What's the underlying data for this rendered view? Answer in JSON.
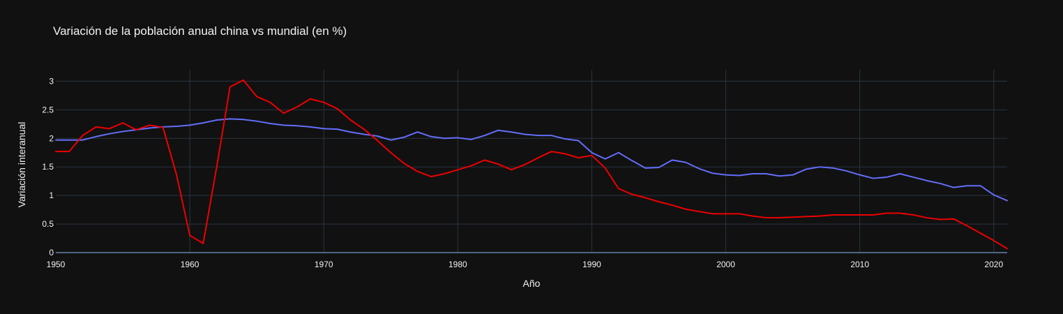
{
  "chart_data": {
    "type": "line",
    "title": "Variación de la población anual china vs mundial (en %)",
    "xlabel": "Año",
    "ylabel": "Variación interanual",
    "xlim": [
      1950,
      2021
    ],
    "ylim": [
      0,
      3.2
    ],
    "x_ticks": [
      1950,
      1960,
      1970,
      1980,
      1990,
      2000,
      2010,
      2020
    ],
    "y_ticks": [
      0,
      0.5,
      1,
      1.5,
      2,
      2.5,
      3
    ],
    "y_tick_labels": [
      "0",
      "0.5",
      "1",
      "1.5",
      "2",
      "2.5",
      "3"
    ],
    "grid": true,
    "colors": {
      "background": "#111111",
      "grid": "#283442",
      "zeroline": "#506784",
      "text": "#f2f2f2"
    },
    "x": [
      1950,
      1951,
      1952,
      1953,
      1954,
      1955,
      1956,
      1957,
      1958,
      1959,
      1960,
      1961,
      1962,
      1963,
      1964,
      1965,
      1966,
      1967,
      1968,
      1969,
      1970,
      1971,
      1972,
      1973,
      1974,
      1975,
      1976,
      1977,
      1978,
      1979,
      1980,
      1981,
      1982,
      1983,
      1984,
      1985,
      1986,
      1987,
      1988,
      1989,
      1990,
      1991,
      1992,
      1993,
      1994,
      1995,
      1996,
      1997,
      1998,
      1999,
      2000,
      2001,
      2002,
      2003,
      2004,
      2005,
      2006,
      2007,
      2008,
      2009,
      2010,
      2011,
      2012,
      2013,
      2014,
      2015,
      2016,
      2017,
      2018,
      2019,
      2020,
      2021
    ],
    "series": [
      {
        "color": "#636efa",
        "values": [
          1.97,
          1.97,
          1.97,
          2.03,
          2.08,
          2.12,
          2.15,
          2.18,
          2.2,
          2.21,
          2.23,
          2.27,
          2.32,
          2.34,
          2.33,
          2.3,
          2.26,
          2.23,
          2.22,
          2.2,
          2.17,
          2.16,
          2.11,
          2.07,
          2.04,
          1.97,
          2.02,
          2.11,
          2.03,
          2.0,
          2.01,
          1.98,
          2.05,
          2.14,
          2.11,
          2.07,
          2.05,
          2.05,
          1.99,
          1.96,
          1.75,
          1.64,
          1.75,
          1.61,
          1.48,
          1.49,
          1.62,
          1.58,
          1.47,
          1.39,
          1.36,
          1.35,
          1.38,
          1.38,
          1.34,
          1.36,
          1.46,
          1.5,
          1.48,
          1.43,
          1.36,
          1.3,
          1.32,
          1.38,
          1.32,
          1.26,
          1.21,
          1.14,
          1.17,
          1.17,
          1.01,
          0.91
        ]
      },
      {
        "color": "#ee0000",
        "values": [
          1.77,
          1.77,
          2.05,
          2.2,
          2.17,
          2.27,
          2.15,
          2.23,
          2.19,
          1.37,
          0.3,
          0.16,
          1.49,
          2.9,
          3.02,
          2.73,
          2.63,
          2.44,
          2.55,
          2.69,
          2.63,
          2.52,
          2.32,
          2.16,
          1.96,
          1.75,
          1.56,
          1.42,
          1.33,
          1.38,
          1.45,
          1.52,
          1.62,
          1.55,
          1.45,
          1.54,
          1.66,
          1.77,
          1.73,
          1.66,
          1.7,
          1.48,
          1.12,
          1.02,
          0.96,
          0.89,
          0.83,
          0.76,
          0.72,
          0.68,
          0.68,
          0.68,
          0.64,
          0.61,
          0.61,
          0.62,
          0.63,
          0.64,
          0.66,
          0.66,
          0.66,
          0.66,
          0.69,
          0.69,
          0.66,
          0.61,
          0.58,
          0.59,
          0.47,
          0.34,
          0.21,
          0.07
        ]
      }
    ]
  }
}
